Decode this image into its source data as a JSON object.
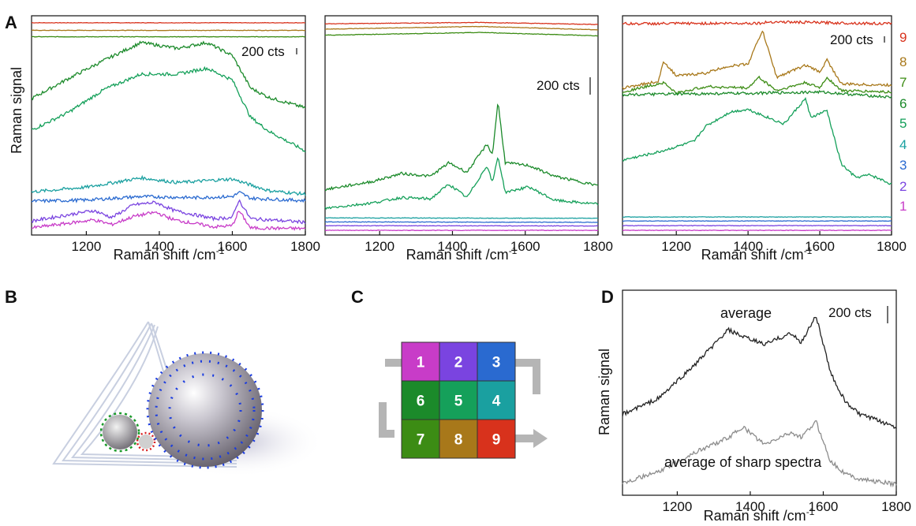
{
  "panel_letters": {
    "a": "A",
    "b": "B",
    "c": "C",
    "d": "D"
  },
  "colors": {
    "1": "#c83cc8",
    "2": "#7a44e0",
    "3": "#2a6ad0",
    "4": "#1aa0a0",
    "5": "#15a05a",
    "6": "#1b8a2a",
    "7": "#3c8c14",
    "8": "#a8781a",
    "9": "#d8321c",
    "avg": "#222222",
    "avg_sharp": "#8c8c8c"
  },
  "legend_numbers": [
    "9",
    "8",
    "7",
    "6",
    "5",
    "4",
    "3",
    "2",
    "1"
  ],
  "grid_tiles": [
    "1",
    "2",
    "3",
    "6",
    "5",
    "4",
    "7",
    "8",
    "9"
  ],
  "chart_data": [
    {
      "type": "line",
      "panel": "A-left",
      "xlabel": "Raman shift /cm",
      "xlabel_sup": "-1",
      "ylabel": "Raman signal",
      "xlim": [
        1050,
        1800
      ],
      "xticks": [
        "1200",
        "1400",
        "1600",
        "1800"
      ],
      "scalebar": "200 cts",
      "series": [
        {
          "name": "9",
          "x": [
            1050,
            1800
          ],
          "y": [
            3000,
            3000
          ]
        },
        {
          "name": "8",
          "x": [
            1050,
            1800
          ],
          "y": [
            2935,
            2935
          ]
        },
        {
          "name": "7",
          "x": [
            1050,
            1800
          ],
          "y": [
            2880,
            2880
          ]
        },
        {
          "name": "6",
          "x": [
            1050,
            1150,
            1250,
            1350,
            1450,
            1530,
            1600,
            1650,
            1700,
            1800
          ],
          "y": [
            2350,
            2520,
            2680,
            2830,
            2780,
            2830,
            2720,
            2440,
            2360,
            2270
          ]
        },
        {
          "name": "5",
          "x": [
            1050,
            1150,
            1250,
            1350,
            1450,
            1530,
            1600,
            1650,
            1700,
            1800
          ],
          "y": [
            2080,
            2230,
            2430,
            2560,
            2560,
            2610,
            2510,
            2190,
            2070,
            1900
          ]
        },
        {
          "name": "4",
          "x": [
            1050,
            1200,
            1350,
            1450,
            1550,
            1600,
            1700,
            1800
          ],
          "y": [
            1550,
            1590,
            1670,
            1630,
            1650,
            1660,
            1560,
            1530
          ]
        },
        {
          "name": "3",
          "x": [
            1050,
            1200,
            1350,
            1500,
            1600,
            1620,
            1650,
            1800
          ],
          "y": [
            1470,
            1480,
            1510,
            1500,
            1510,
            1545,
            1495,
            1475
          ]
        },
        {
          "name": "2",
          "x": [
            1050,
            1220,
            1270,
            1330,
            1390,
            1440,
            1550,
            1600,
            1618,
            1650,
            1800
          ],
          "y": [
            1300,
            1390,
            1330,
            1440,
            1460,
            1390,
            1320,
            1330,
            1480,
            1320,
            1290
          ]
        },
        {
          "name": "1",
          "x": [
            1050,
            1220,
            1270,
            1330,
            1390,
            1440,
            1550,
            1600,
            1618,
            1650,
            1800
          ],
          "y": [
            1240,
            1310,
            1270,
            1340,
            1375,
            1310,
            1250,
            1260,
            1390,
            1240,
            1235
          ]
        }
      ]
    },
    {
      "type": "line",
      "panel": "A-middle",
      "xlabel": "Raman shift /cm",
      "xlabel_sup": "-1",
      "xlim": [
        1050,
        1800
      ],
      "xticks": [
        "1200",
        "1400",
        "1600",
        "1800"
      ],
      "scalebar": "200 cts",
      "series": [
        {
          "name": "9",
          "x": [
            1050,
            1480,
            1800
          ],
          "y": [
            3000,
            3010,
            2995
          ]
        },
        {
          "name": "8",
          "x": [
            1050,
            1480,
            1800
          ],
          "y": [
            2960,
            2980,
            2955
          ]
        },
        {
          "name": "7",
          "x": [
            1050,
            1480,
            1800
          ],
          "y": [
            2915,
            2935,
            2910
          ]
        },
        {
          "name": "6",
          "x": [
            1050,
            1180,
            1260,
            1340,
            1390,
            1440,
            1495,
            1510,
            1525,
            1545,
            1610,
            1680,
            1800
          ],
          "y": [
            1760,
            1820,
            1880,
            1860,
            1960,
            1890,
            2100,
            2020,
            2420,
            1960,
            1940,
            1860,
            1790
          ]
        },
        {
          "name": "5",
          "x": [
            1050,
            1180,
            1260,
            1340,
            1390,
            1440,
            1495,
            1510,
            1525,
            1545,
            1610,
            1680,
            1800
          ],
          "y": [
            1620,
            1660,
            1700,
            1690,
            1800,
            1700,
            1940,
            1810,
            2010,
            1740,
            1780,
            1680,
            1650
          ]
        },
        {
          "name": "4",
          "x": [
            1050,
            1800
          ],
          "y": [
            1548,
            1545
          ]
        },
        {
          "name": "3",
          "x": [
            1050,
            1800
          ],
          "y": [
            1518,
            1515
          ]
        },
        {
          "name": "2",
          "x": [
            1050,
            1800
          ],
          "y": [
            1490,
            1488
          ]
        },
        {
          "name": "1",
          "x": [
            1050,
            1800
          ],
          "y": [
            1455,
            1455
          ]
        }
      ]
    },
    {
      "type": "line",
      "panel": "A-right",
      "xlabel": "Raman shift /cm",
      "xlabel_sup": "-1",
      "xlim": [
        1050,
        1800
      ],
      "xticks": [
        "1200",
        "1400",
        "1600",
        "1800"
      ],
      "scalebar": "200 cts",
      "series": [
        {
          "name": "9",
          "x": [
            1050,
            1440,
            1460,
            1800
          ],
          "y": [
            3000,
            3005,
            3015,
            3000
          ]
        },
        {
          "name": "8",
          "x": [
            1050,
            1150,
            1165,
            1200,
            1280,
            1340,
            1400,
            1440,
            1480,
            1560,
            1600,
            1620,
            1660,
            1800
          ],
          "y": [
            2520,
            2570,
            2720,
            2610,
            2630,
            2680,
            2700,
            2950,
            2600,
            2690,
            2640,
            2730,
            2550,
            2540
          ]
        },
        {
          "name": "7",
          "x": [
            1050,
            1165,
            1200,
            1280,
            1400,
            1430,
            1480,
            1560,
            1600,
            1620,
            1660,
            1800
          ],
          "y": [
            2490,
            2560,
            2480,
            2530,
            2520,
            2600,
            2500,
            2560,
            2520,
            2600,
            2500,
            2490
          ]
        },
        {
          "name": "6",
          "x": [
            1050,
            1400,
            1600,
            1800
          ],
          "y": [
            2470,
            2480,
            2490,
            2450
          ]
        },
        {
          "name": "5",
          "x": [
            1050,
            1150,
            1250,
            1280,
            1350,
            1400,
            1500,
            1560,
            1575,
            1620,
            1660,
            1700,
            1740,
            1800
          ],
          "y": [
            1980,
            2040,
            2120,
            2230,
            2340,
            2360,
            2250,
            2440,
            2300,
            2350,
            1950,
            1850,
            1870,
            1800
          ]
        },
        {
          "name": "4",
          "x": [
            1050,
            1800
          ],
          "y": [
            1555,
            1555
          ]
        },
        {
          "name": "3",
          "x": [
            1050,
            1800
          ],
          "y": [
            1525,
            1525
          ]
        },
        {
          "name": "2",
          "x": [
            1050,
            1800
          ],
          "y": [
            1490,
            1490
          ]
        },
        {
          "name": "1",
          "x": [
            1050,
            1800
          ],
          "y": [
            1455,
            1455
          ]
        }
      ]
    },
    {
      "type": "line",
      "panel": "D",
      "xlabel": "Raman shift /cm",
      "xlabel_sup": "-1",
      "ylabel": "Raman signal",
      "xlim": [
        1050,
        1800
      ],
      "xticks": [
        "1200",
        "1400",
        "1600",
        "1800"
      ],
      "scalebar": "200 cts",
      "series": [
        {
          "name": "average",
          "x": [
            1050,
            1150,
            1250,
            1340,
            1380,
            1440,
            1510,
            1540,
            1580,
            1620,
            1660,
            1700,
            1800
          ],
          "y": [
            1830,
            1920,
            2110,
            2300,
            2260,
            2220,
            2280,
            2230,
            2380,
            2060,
            1900,
            1830,
            1760
          ]
        },
        {
          "name": "average of sharp spectra",
          "x": [
            1050,
            1150,
            1250,
            1340,
            1380,
            1440,
            1510,
            1540,
            1580,
            1620,
            1660,
            1700,
            1800
          ],
          "y": [
            1450,
            1510,
            1620,
            1700,
            1760,
            1660,
            1730,
            1700,
            1790,
            1570,
            1500,
            1470,
            1440
          ]
        }
      ]
    }
  ]
}
